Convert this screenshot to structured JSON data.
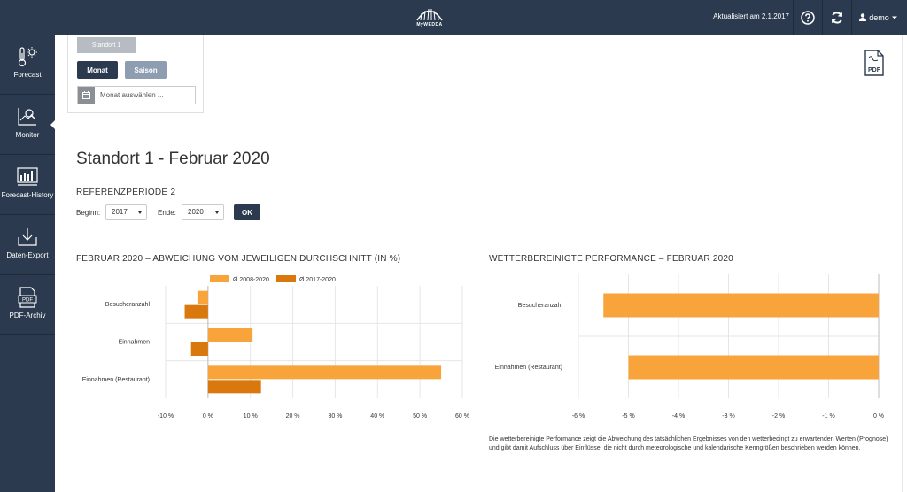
{
  "header": {
    "logo_text": "MyWEDDA",
    "updated": "Aktualisiert am 2.1.2017",
    "help_icon": "help-circle-icon",
    "refresh_icon": "refresh-icon",
    "user": "demo"
  },
  "sidebar": {
    "items": [
      {
        "label": "Forecast",
        "icon": "thermometer-sun-icon"
      },
      {
        "label": "Monitor",
        "icon": "monitor-chart-icon"
      },
      {
        "label": "Forecast-History",
        "icon": "history-chart-icon"
      },
      {
        "label": "Daten-Export",
        "icon": "download-icon"
      },
      {
        "label": "PDF-Archiv",
        "icon": "pdf-icon"
      }
    ]
  },
  "selector": {
    "standort": "Standort 1",
    "monat": "Monat",
    "saison": "Saison",
    "date_placeholder": "Monat auswählen ..."
  },
  "pdf_label": "PDF",
  "page_title": "Standort 1 - Februar 2020",
  "referenz": {
    "title": "REFERENZPERIODE 2",
    "begin_label": "Beginn:",
    "begin_value": "2017",
    "end_label": "Ende:",
    "end_value": "2020",
    "ok": "OK"
  },
  "colors": {
    "series1": "#f9a43a",
    "series2": "#d9780c",
    "nav": "#2b3a4e"
  },
  "chart_data": [
    {
      "type": "bar",
      "orientation": "horizontal",
      "title": "FEBRUAR 2020 – ABWEICHUNG VOM JEWEILIGEN DURCHSCHNITT (IN %)",
      "categories": [
        "Besucheranzahl",
        "Einnahmen",
        "Einnahmen (Restaurant)"
      ],
      "series": [
        {
          "name": "Ø 2008-2020",
          "values": [
            -2.5,
            10.5,
            55
          ]
        },
        {
          "name": "Ø 2017-2020",
          "values": [
            -5.5,
            -4,
            12.5
          ]
        }
      ],
      "xlim": [
        -10,
        60
      ],
      "xticks": [
        -10,
        0,
        10,
        20,
        30,
        40,
        50,
        60
      ],
      "tick_suffix": " %",
      "legend": "top",
      "grid": true
    },
    {
      "type": "bar",
      "orientation": "horizontal",
      "title": "WETTERBEREINIGTE PERFORMANCE – FEBRUAR 2020",
      "categories": [
        "Besucheranzahl",
        "Einnahmen (Restaurant)"
      ],
      "series": [
        {
          "values": [
            -5.5,
            -5
          ]
        }
      ],
      "xlim": [
        -6,
        0
      ],
      "xticks": [
        -6,
        -5,
        -4,
        -3,
        -2,
        -1,
        0
      ],
      "tick_suffix": " %",
      "grid": true
    }
  ],
  "note": "Die wetterbereinigte Performance zeigt die Abweichung des tatsächlichen Ergebnisses von den wetterbedingt zu erwartenden Werten (Prognose) und gibt damit Aufschluss über Einflüsse, die nicht durch meteorologische und kalendarische Kenngrößen beschrieben werden können."
}
